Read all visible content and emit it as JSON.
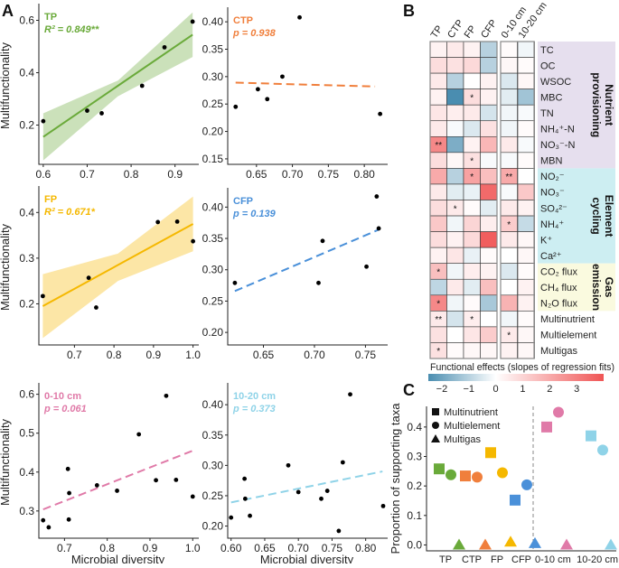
{
  "panel_labels": {
    "a": "A",
    "b": "B",
    "c": "C"
  },
  "chart_data": [
    {
      "type": "scatter",
      "id": "TP",
      "label": "TP",
      "stat": "R² = 0.849**",
      "color": "#6aaa3a",
      "fit_style": "solid",
      "xlabel": "",
      "ylabel": "Multifunctionality",
      "xlim": [
        0.59,
        0.95
      ],
      "ylim": [
        0.05,
        0.65
      ],
      "xticks": [
        "0.6",
        "0.7",
        "0.8",
        "0.9"
      ],
      "yticks": [
        "0.2",
        "0.4",
        "0.6"
      ],
      "points": [
        [
          0.6,
          0.215
        ],
        [
          0.7,
          0.255
        ],
        [
          0.733,
          0.245
        ],
        [
          0.825,
          0.35
        ],
        [
          0.876,
          0.497
        ],
        [
          0.94,
          0.595
        ]
      ],
      "fit": [
        [
          0.6,
          0.155
        ],
        [
          0.94,
          0.545
        ]
      ],
      "band": {
        "x": [
          0.6,
          0.77,
          0.94
        ],
        "lower": [
          0.065,
          0.31,
          0.46
        ],
        "upper": [
          0.245,
          0.37,
          0.63
        ]
      }
    },
    {
      "type": "scatter",
      "id": "CTP",
      "label": "CTP",
      "stat": "p = 0.938",
      "color": "#f07f3c",
      "fit_style": "dashed",
      "xlabel": "",
      "ylabel": "",
      "xlim": [
        0.61,
        0.83
      ],
      "ylim": [
        0.14,
        0.42
      ],
      "xticks": [
        "0.65",
        "0.70",
        "0.75",
        "0.80"
      ],
      "yticks": [
        "0.15",
        "0.20",
        "0.25",
        "0.30",
        "0.35",
        "0.40"
      ],
      "points": [
        [
          0.621,
          0.245
        ],
        [
          0.652,
          0.277
        ],
        [
          0.665,
          0.259
        ],
        [
          0.686,
          0.3
        ],
        [
          0.71,
          0.408
        ],
        [
          0.822,
          0.232
        ]
      ],
      "fit": [
        [
          0.621,
          0.289
        ],
        [
          0.815,
          0.282
        ]
      ]
    },
    {
      "type": "scatter",
      "id": "FP",
      "label": "FP",
      "stat": "R² = 0.671*",
      "color": "#f5b800",
      "fit_style": "solid",
      "xlabel": "",
      "ylabel": "Multifunctionality",
      "xlim": [
        0.61,
        1.01
      ],
      "ylim": [
        0.11,
        0.45
      ],
      "xticks": [
        "0.7",
        "0.8",
        "0.9",
        "1.0"
      ],
      "yticks": [
        "0.2",
        "0.3",
        "0.4"
      ],
      "points": [
        [
          0.62,
          0.217
        ],
        [
          0.736,
          0.257
        ],
        [
          0.755,
          0.192
        ],
        [
          0.911,
          0.379
        ],
        [
          0.96,
          0.38
        ],
        [
          1.0,
          0.337
        ]
      ],
      "fit": [
        [
          0.62,
          0.195
        ],
        [
          1.0,
          0.375
        ]
      ],
      "band": {
        "x": [
          0.62,
          0.81,
          1.0
        ],
        "lower": [
          0.125,
          0.25,
          0.315
        ],
        "upper": [
          0.265,
          0.31,
          0.435
        ]
      }
    },
    {
      "type": "scatter",
      "id": "CFP",
      "label": "CFP",
      "stat": "p = 0.139",
      "color": "#4a90d9",
      "fit_style": "dashed",
      "xlabel": "",
      "ylabel": "",
      "xlim": [
        0.615,
        0.77
      ],
      "ylim": [
        0.18,
        0.425
      ],
      "xticks": [
        "0.65",
        "0.70",
        "0.75"
      ],
      "yticks": [
        "0.20",
        "0.25",
        "0.30",
        "0.35",
        "0.40"
      ],
      "points": [
        [
          0.622,
          0.279
        ],
        [
          0.704,
          0.279
        ],
        [
          0.708,
          0.346
        ],
        [
          0.751,
          0.305
        ],
        [
          0.761,
          0.417
        ],
        [
          0.763,
          0.366
        ]
      ],
      "fit": [
        [
          0.622,
          0.266
        ],
        [
          0.763,
          0.364
        ]
      ]
    },
    {
      "type": "scatter",
      "id": "D010",
      "label": "0-10 cm",
      "stat": "p = 0.061",
      "color": "#e07aa8",
      "fit_style": "dashed",
      "xlabel": "Microbial diversity",
      "ylabel": "Multifunctionality",
      "xlim": [
        0.64,
        1.01
      ],
      "ylim": [
        0.23,
        0.62
      ],
      "xticks": [
        "0.7",
        "0.8",
        "0.9",
        "1.0"
      ],
      "yticks": [
        "0.3",
        "0.4",
        "0.5",
        "0.6"
      ],
      "points": [
        [
          0.65,
          0.276
        ],
        [
          0.663,
          0.258
        ],
        [
          0.708,
          0.408
        ],
        [
          0.711,
          0.346
        ],
        [
          0.71,
          0.278
        ],
        [
          0.776,
          0.366
        ],
        [
          0.823,
          0.352
        ],
        [
          0.874,
          0.497
        ],
        [
          0.914,
          0.379
        ],
        [
          0.938,
          0.596
        ],
        [
          0.961,
          0.38
        ],
        [
          1.0,
          0.337
        ]
      ],
      "fit": [
        [
          0.65,
          0.304
        ],
        [
          1.0,
          0.455
        ]
      ]
    },
    {
      "type": "scatter",
      "id": "D1020",
      "label": "10-20 cm",
      "stat": "p = 0.373",
      "color": "#8fd3e8",
      "fit_style": "dashed",
      "xlabel": "Microbial diversity",
      "ylabel": "",
      "xlim": [
        0.595,
        0.83
      ],
      "ylim": [
        0.18,
        0.43
      ],
      "xticks": [
        "0.60",
        "0.65",
        "0.70",
        "0.75",
        "0.80"
      ],
      "yticks": [
        "0.20",
        "0.25",
        "0.30",
        "0.35",
        "0.40"
      ],
      "points": [
        [
          0.6,
          0.214
        ],
        [
          0.62,
          0.278
        ],
        [
          0.621,
          0.245
        ],
        [
          0.628,
          0.217
        ],
        [
          0.685,
          0.3
        ],
        [
          0.7,
          0.256
        ],
        [
          0.734,
          0.245
        ],
        [
          0.743,
          0.258
        ],
        [
          0.766,
          0.305
        ],
        [
          0.777,
          0.417
        ],
        [
          0.76,
          0.192
        ],
        [
          0.826,
          0.233
        ]
      ],
      "fit": [
        [
          0.6,
          0.239
        ],
        [
          0.825,
          0.29
        ]
      ]
    },
    {
      "type": "heatmap",
      "id": "B",
      "columns": [
        "TP",
        "CTP",
        "FP",
        "CFP",
        "0-10 cm",
        "10-20 cm"
      ],
      "colorbar_label": "Functional effects (slopes of regression fits)",
      "colorbar_ticks": [
        "−2",
        "−1",
        "0",
        "1",
        "2",
        "3"
      ],
      "color_range": [
        -2.5,
        4
      ],
      "colors": {
        "low": "#4a8db0",
        "mid": "#ffffff",
        "high": "#f05555"
      },
      "groups": [
        {
          "name_lines": [
            "Nutrient",
            "provisioning"
          ],
          "rows": [
            0,
            7
          ],
          "color": "#e6dfee"
        },
        {
          "name_lines": [
            "Element",
            "cycling"
          ],
          "rows": [
            8,
            13
          ],
          "color": "#cdeef2"
        },
        {
          "name_lines": [
            "Gas",
            "emission"
          ],
          "rows": [
            14,
            16
          ],
          "color": "#fafadf"
        }
      ],
      "rows": [
        {
          "label": "TC",
          "values": [
            0.3,
            0.5,
            0.3,
            -1.0,
            0.1,
            -0.2
          ],
          "stars": [
            "",
            "",
            "",
            "",
            "",
            ""
          ]
        },
        {
          "label": "OC",
          "values": [
            0.8,
            0.7,
            0.9,
            -1.0,
            0.2,
            0.1
          ],
          "stars": [
            "",
            "",
            "",
            "",
            "",
            ""
          ]
        },
        {
          "label": "WSOC",
          "values": [
            0.5,
            -1.0,
            0,
            0.3,
            -0.5,
            0.2
          ],
          "stars": [
            "",
            "",
            "",
            "",
            "",
            ""
          ]
        },
        {
          "label": "MBC",
          "values": [
            0.3,
            -2.5,
            0.8,
            0.3,
            -0.4,
            -1.3
          ],
          "stars": [
            "",
            "",
            "*",
            "",
            "",
            ""
          ]
        },
        {
          "label": "TN",
          "values": [
            0.6,
            0.4,
            0.5,
            -0.6,
            -0.2,
            -0.1
          ],
          "stars": [
            "",
            "",
            "",
            "",
            "",
            ""
          ]
        },
        {
          "label": "NH₄⁺-N",
          "values": [
            0.5,
            -0.1,
            -0.5,
            0.7,
            -0.2,
            0.1
          ],
          "stars": [
            "",
            "",
            "",
            "",
            "",
            ""
          ]
        },
        {
          "label": "NO₃⁻-N",
          "values": [
            2.8,
            -1.8,
            0.3,
            1.7,
            0.5,
            -0.1
          ],
          "stars": [
            "**",
            "",
            "",
            "",
            "",
            ""
          ]
        },
        {
          "label": "MBN",
          "values": [
            0.8,
            0.2,
            0.7,
            -0.1,
            -0.1,
            0.1
          ],
          "stars": [
            "",
            "",
            "*",
            "",
            "",
            ""
          ]
        },
        {
          "label": "NO₂⁻",
          "values": [
            2.0,
            -1.0,
            2.2,
            1.5,
            2.0,
            0
          ],
          "stars": [
            "",
            "",
            "*",
            "",
            "**",
            ""
          ]
        },
        {
          "label": "NO₃⁻",
          "values": [
            0.5,
            -0.4,
            -0.3,
            3.5,
            -0.1,
            1.3
          ],
          "stars": [
            "",
            "",
            "",
            "",
            "",
            ""
          ]
        },
        {
          "label": "SO₄²⁻",
          "values": [
            0.8,
            0.5,
            0.1,
            -0.4,
            0.5,
            0.3
          ],
          "stars": [
            "",
            "*",
            "",
            "",
            "",
            ""
          ]
        },
        {
          "label": "NH₄⁺",
          "values": [
            1.3,
            -0.2,
            1.0,
            0.4,
            1.2,
            -0.8
          ],
          "stars": [
            "",
            "",
            "",
            "",
            "*",
            ""
          ]
        },
        {
          "label": "K⁺",
          "values": [
            0.8,
            0.3,
            0.9,
            3.8,
            0.5,
            0.2
          ],
          "stars": [
            "",
            "",
            "",
            "",
            "",
            ""
          ]
        },
        {
          "label": "Ca²⁺",
          "values": [
            0.3,
            0.6,
            -0.3,
            0.1,
            0,
            0.2
          ],
          "stars": [
            "",
            "",
            "",
            "",
            "",
            ""
          ]
        },
        {
          "label": "CO₂ flux",
          "values": [
            1.5,
            -0.2,
            0.4,
            0.3,
            -0.5,
            0.1
          ],
          "stars": [
            "*",
            "",
            "",
            "",
            "",
            ""
          ]
        },
        {
          "label": "CH₄ flux",
          "values": [
            -0.9,
            0.5,
            -0.4,
            1.5,
            0,
            0.3
          ],
          "stars": [
            "",
            "",
            "",
            "",
            "",
            ""
          ]
        },
        {
          "label": "N₂O flux",
          "values": [
            2.8,
            -0.2,
            0.1,
            -1.2,
            1.8,
            0.3
          ],
          "stars": [
            "*",
            "",
            "",
            "",
            "",
            ""
          ]
        },
        {
          "label": "Multinutrient",
          "values": [
            0.5,
            -0.6,
            0.4,
            0,
            -0.2,
            0.1
          ],
          "stars": [
            "**",
            "",
            "*",
            "",
            "",
            ""
          ]
        },
        {
          "label": "Multielement",
          "values": [
            0.7,
            0,
            0.6,
            1.2,
            0.5,
            0.2
          ],
          "stars": [
            "",
            "",
            "",
            "",
            "*",
            ""
          ]
        },
        {
          "label": "Multigas",
          "values": [
            0.7,
            0.1,
            0.2,
            0.2,
            0.3,
            0.2
          ],
          "stars": [
            "*",
            "",
            "",
            "",
            "",
            ""
          ]
        }
      ]
    },
    {
      "type": "scatter",
      "id": "C",
      "ylabel": "Proportion of supporting taxa",
      "ylim": [
        -0.02,
        0.47
      ],
      "yticks": [
        "0.0",
        "0.1",
        "0.2",
        "0.3",
        "0.4"
      ],
      "categories": [
        "TP",
        "CTP",
        "FP",
        "CFP",
        "0-10 cm",
        "10-20 cm"
      ],
      "category_colors": [
        "#6aaa3a",
        "#f07f3c",
        "#f5b800",
        "#4a90d9",
        "#e07aa8",
        "#8fd3e8"
      ],
      "legend_placement": "top-left",
      "series": [
        {
          "name": "Multinutrient",
          "marker": "square",
          "values": [
            0.258,
            0.234,
            0.313,
            0.152,
            0.4,
            0.37
          ]
        },
        {
          "name": "Multielement",
          "marker": "circle",
          "values": [
            0.238,
            0.23,
            0.245,
            0.204,
            0.45,
            0.322
          ]
        },
        {
          "name": "Multigas",
          "marker": "triangle",
          "values": [
            0,
            0,
            0.01,
            0.005,
            0,
            0
          ]
        }
      ],
      "divider_after": "CFP"
    }
  ]
}
